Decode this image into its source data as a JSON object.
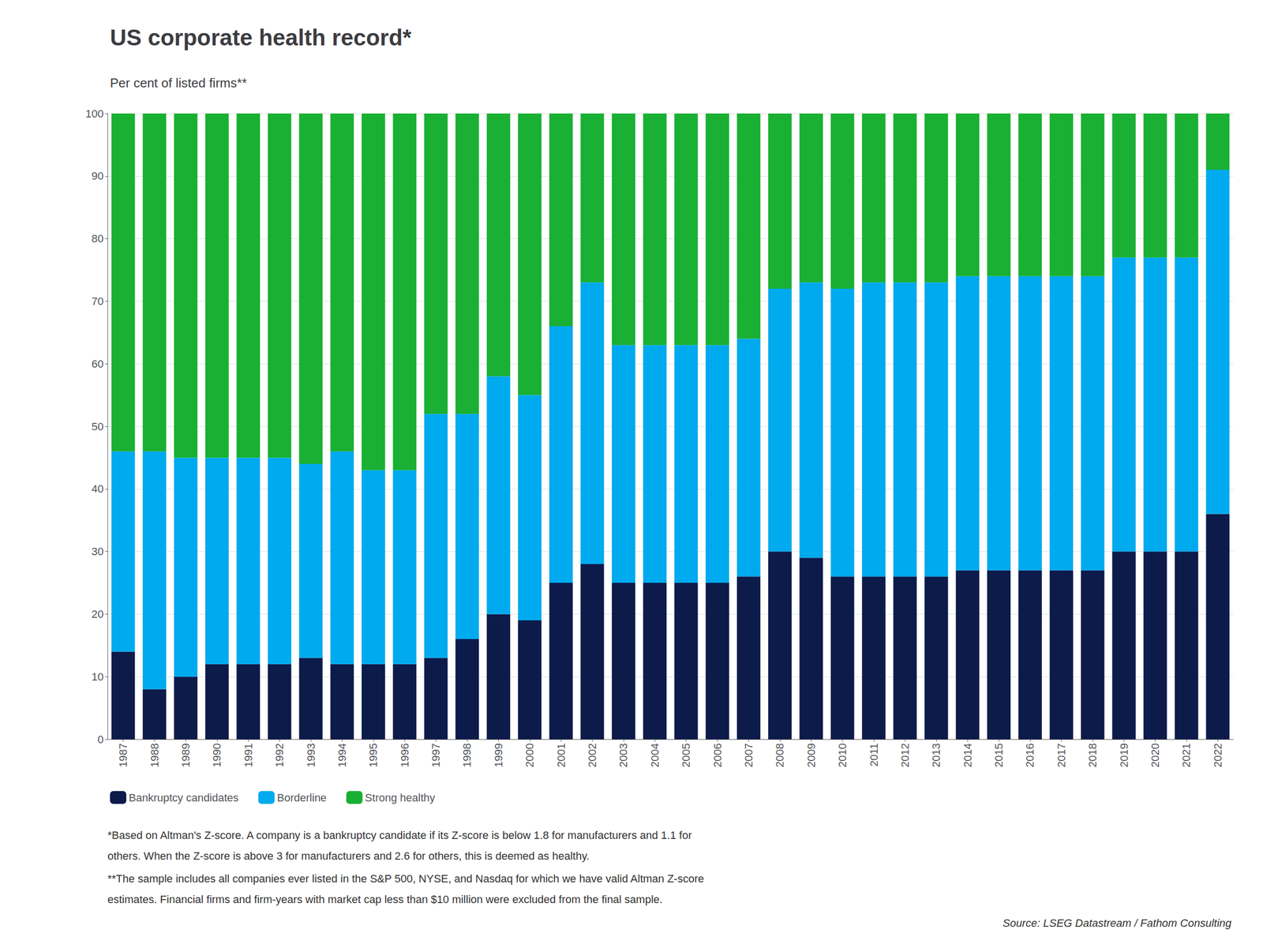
{
  "chart_data": {
    "type": "bar",
    "title": "US corporate health record*",
    "subtitle": "Per cent of listed firms**",
    "categories": [
      "1987",
      "1988",
      "1989",
      "1990",
      "1991",
      "1992",
      "1993",
      "1994",
      "1995",
      "1996",
      "1997",
      "1998",
      "1999",
      "2000",
      "2001",
      "2002",
      "2003",
      "2004",
      "2005",
      "2006",
      "2007",
      "2008",
      "2009",
      "2010",
      "2011",
      "2012",
      "2013",
      "2014",
      "2015",
      "2016",
      "2017",
      "2018",
      "2019",
      "2020",
      "2021",
      "2022"
    ],
    "series": [
      {
        "name": "Bankruptcy candidates",
        "color": "#0d1b4b",
        "values": [
          14,
          8,
          10,
          12,
          12,
          12,
          13,
          12,
          12,
          12,
          13,
          16,
          20,
          19,
          25,
          28,
          25,
          25,
          25,
          25,
          26,
          30,
          29,
          26,
          26,
          26,
          26,
          27,
          27,
          27,
          27,
          27,
          30,
          30,
          30,
          36
        ]
      },
      {
        "name": "Borderline",
        "color": "#00aaee",
        "values": [
          32,
          38,
          35,
          33,
          33,
          33,
          31,
          34,
          31,
          31,
          39,
          36,
          38,
          36,
          41,
          45,
          38,
          38,
          38,
          38,
          38,
          42,
          44,
          46,
          47,
          47,
          47,
          47,
          47,
          47,
          47,
          47,
          47,
          47,
          47,
          55
        ]
      },
      {
        "name": "Strong healthy",
        "color": "#19b033",
        "values": [
          54,
          54,
          55,
          55,
          55,
          55,
          56,
          54,
          57,
          57,
          48,
          48,
          42,
          45,
          34,
          27,
          37,
          37,
          37,
          37,
          36,
          28,
          27,
          28,
          27,
          27,
          27,
          26,
          26,
          26,
          26,
          26,
          23,
          23,
          23,
          9
        ]
      }
    ],
    "stacked": true,
    "ylim": [
      0,
      100
    ],
    "yticks": [
      0,
      10,
      20,
      30,
      40,
      50,
      60,
      70,
      80,
      90,
      100
    ],
    "grid": true,
    "legend": "lower left",
    "footnotes": [
      "*Based on Altman's Z-score. A company is a bankruptcy candidate if its Z-score is below 1.8 for manufacturers and 1.1 for",
      "others. When the Z-score is above 3 for manufacturers and 2.6 for others, this is deemed as healthy.",
      "**The sample includes all companies ever listed in the S&P 500, NYSE, and Nasdaq for which we have valid Altman Z-score",
      "estimates. Financial firms and firm-years with market cap less than $10 million were excluded from the final sample."
    ],
    "source": "Source: LSEG Datastream / Fathom Consulting"
  }
}
